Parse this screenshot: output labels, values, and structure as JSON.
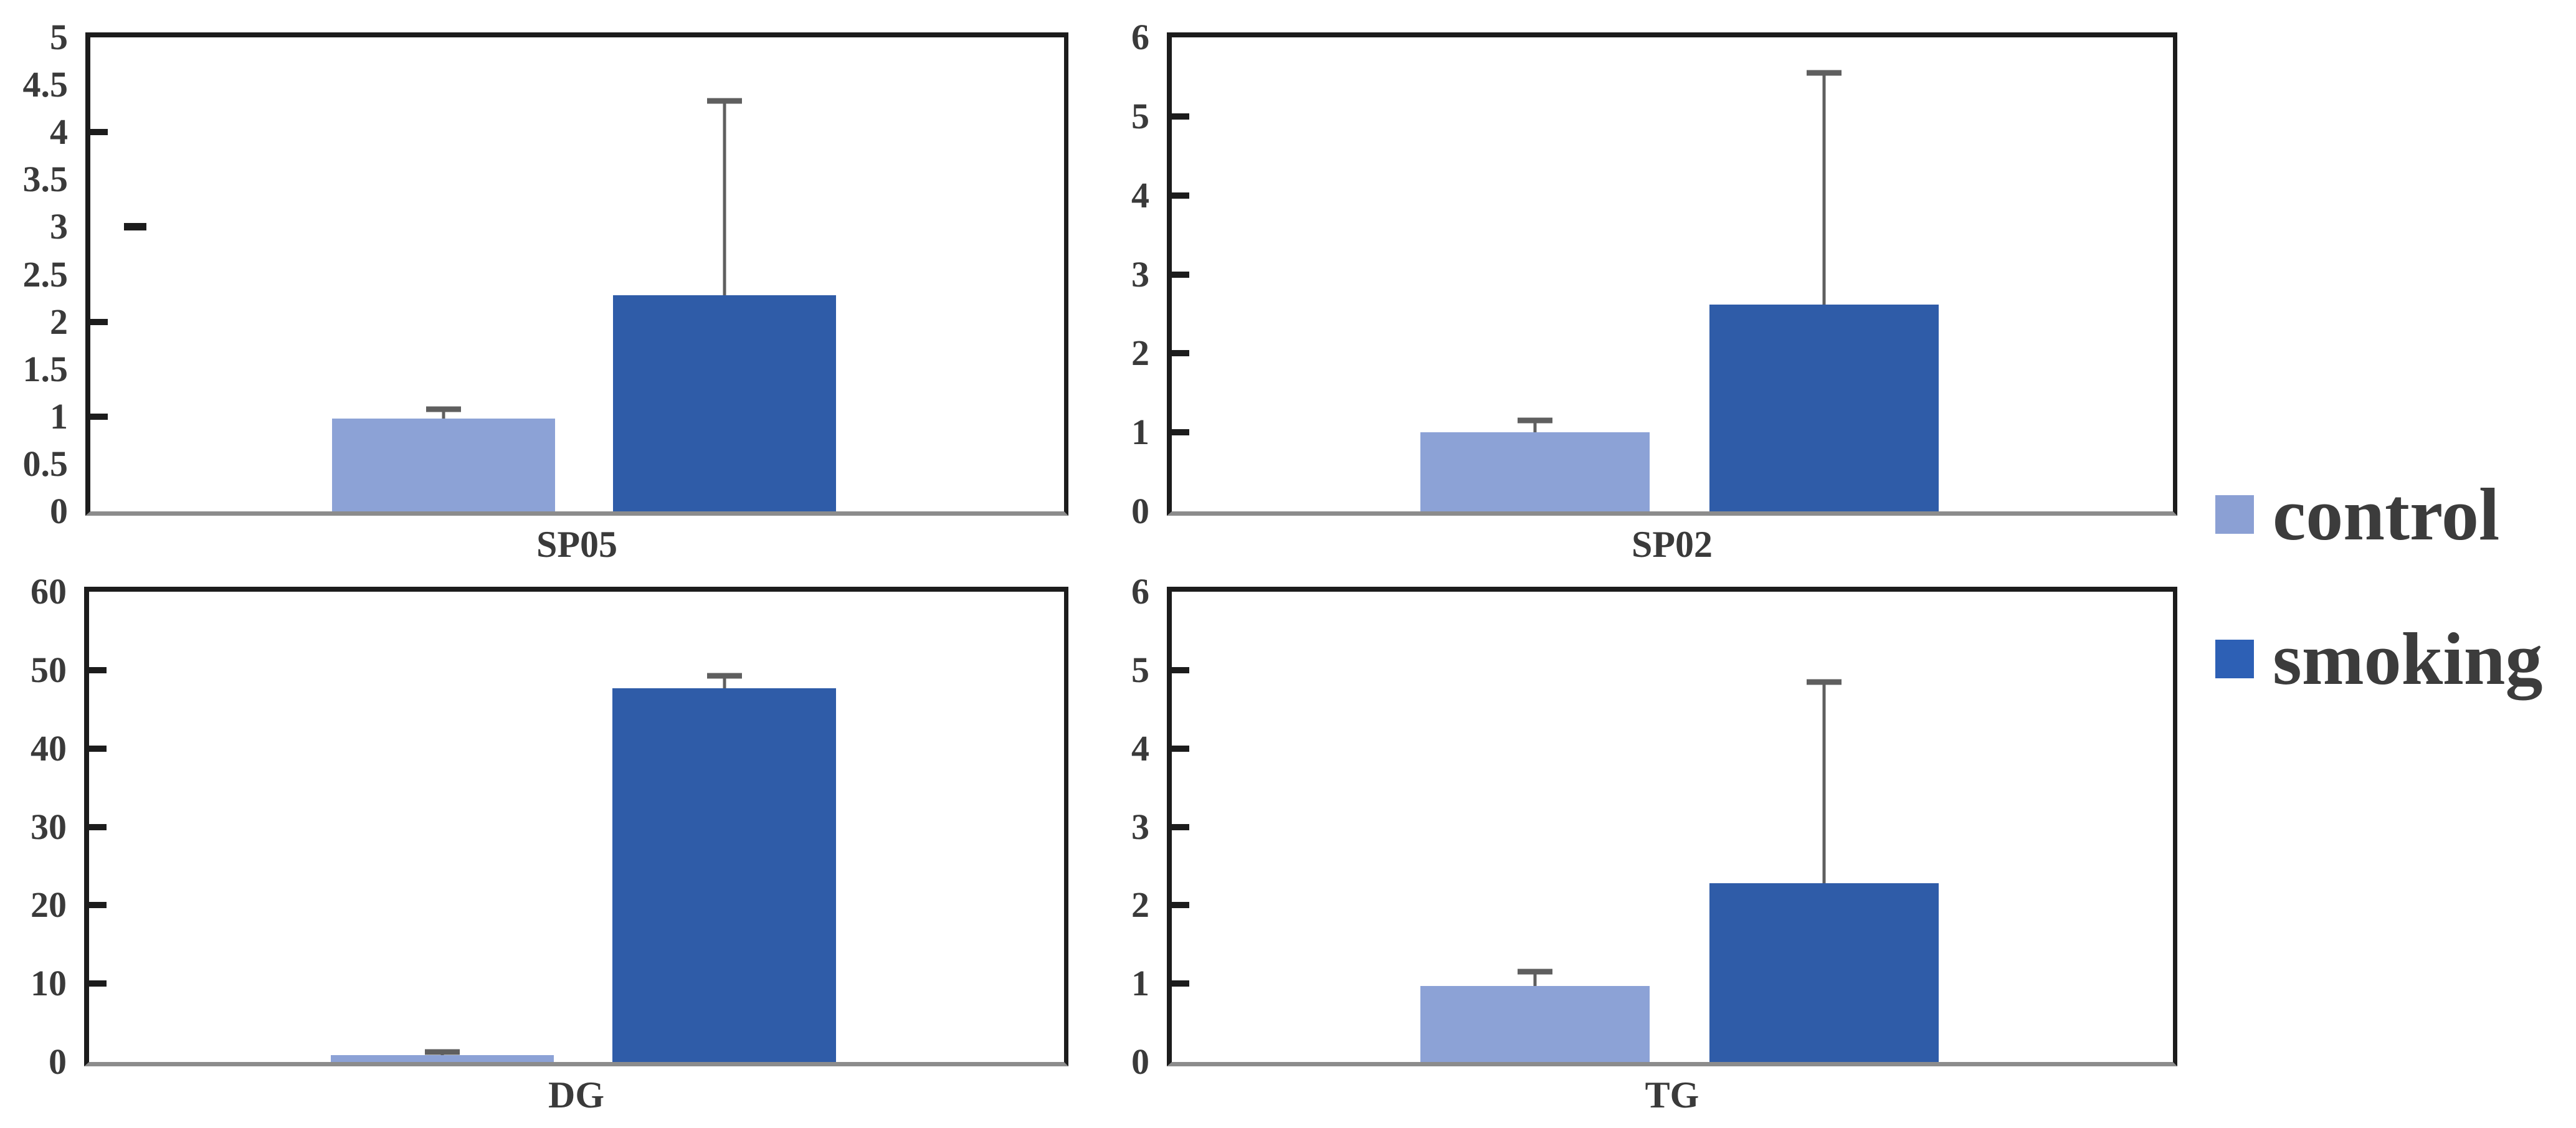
{
  "figure": {
    "background": "#ffffff"
  },
  "axis_style": {
    "frame_color": "#1c1c1c",
    "baseline_color": "#8c8c8c",
    "tick_color": "#1c1c1c",
    "label_color": "#3a3a3a",
    "error_bar_color": "#5f5f5f"
  },
  "legend": {
    "position": "right-middle",
    "text_color": "#3c3c3c",
    "items": [
      {
        "label": "control",
        "color": "#8BA0D4"
      },
      {
        "label": "smoking",
        "color": "#2D60B5"
      }
    ]
  },
  "chart_data": [
    {
      "type": "bar",
      "title": "SP05",
      "categories": [
        "SP05"
      ],
      "ylim": [
        0,
        5
      ],
      "ytick_values": [
        0,
        0.5,
        1,
        1.5,
        2,
        2.5,
        3,
        3.5,
        4,
        4.5,
        5
      ],
      "ytick_labels": [
        "0",
        "0.5",
        "1",
        "1.5",
        "2",
        "2.5",
        "3",
        "3.5",
        "4",
        "4.5",
        "5"
      ],
      "tick_mark_values": [
        1,
        2,
        4
      ],
      "detached_tick_value": 3,
      "grid": false,
      "series": [
        {
          "name": "control",
          "value": 0.98,
          "error_top": 1.08,
          "color": "#8CA2D6"
        },
        {
          "name": "smoking",
          "value": 2.28,
          "error_top": 4.33,
          "color": "#2F5CA8"
        }
      ]
    },
    {
      "type": "bar",
      "title": "SP02",
      "categories": [
        "SP02"
      ],
      "ylim": [
        0,
        6
      ],
      "ytick_values": [
        0,
        1,
        2,
        3,
        4,
        5,
        6
      ],
      "ytick_labels": [
        "0",
        "1",
        "2",
        "3",
        "4",
        "5",
        "6"
      ],
      "tick_mark_values": [
        1,
        2,
        3,
        4,
        5
      ],
      "detached_tick_value": null,
      "grid": false,
      "series": [
        {
          "name": "control",
          "value": 1.0,
          "error_top": 1.15,
          "color": "#8CA2D6"
        },
        {
          "name": "smoking",
          "value": 2.62,
          "error_top": 5.55,
          "color": "#2F5CA8"
        }
      ]
    },
    {
      "type": "bar",
      "title": "DG",
      "categories": [
        "DG"
      ],
      "ylim": [
        0,
        60
      ],
      "ytick_values": [
        0,
        10,
        20,
        30,
        40,
        50,
        60
      ],
      "ytick_labels": [
        "0",
        "10",
        "20",
        "30",
        "40",
        "50",
        "60"
      ],
      "tick_mark_values": [
        10,
        20,
        30,
        40,
        50
      ],
      "detached_tick_value": null,
      "grid": false,
      "series": [
        {
          "name": "control",
          "value": 0.9,
          "error_top": 1.3,
          "color": "#8CA2D6"
        },
        {
          "name": "smoking",
          "value": 47.7,
          "error_top": 49.3,
          "color": "#2F5CA8"
        }
      ]
    },
    {
      "type": "bar",
      "title": "TG",
      "categories": [
        "TG"
      ],
      "ylim": [
        0,
        6
      ],
      "ytick_values": [
        0,
        1,
        2,
        3,
        4,
        5,
        6
      ],
      "ytick_labels": [
        "0",
        "1",
        "2",
        "3",
        "4",
        "5",
        "6"
      ],
      "tick_mark_values": [
        1,
        2,
        3,
        4,
        5
      ],
      "detached_tick_value": null,
      "grid": false,
      "series": [
        {
          "name": "control",
          "value": 0.97,
          "error_top": 1.15,
          "color": "#8CA2D6"
        },
        {
          "name": "smoking",
          "value": 2.28,
          "error_top": 4.85,
          "color": "#2F5CA8"
        }
      ]
    }
  ],
  "bar_layout": {
    "control_left_pct": 24.8,
    "smoking_left_pct": 53.7,
    "bar_width_pct": 22.9
  }
}
